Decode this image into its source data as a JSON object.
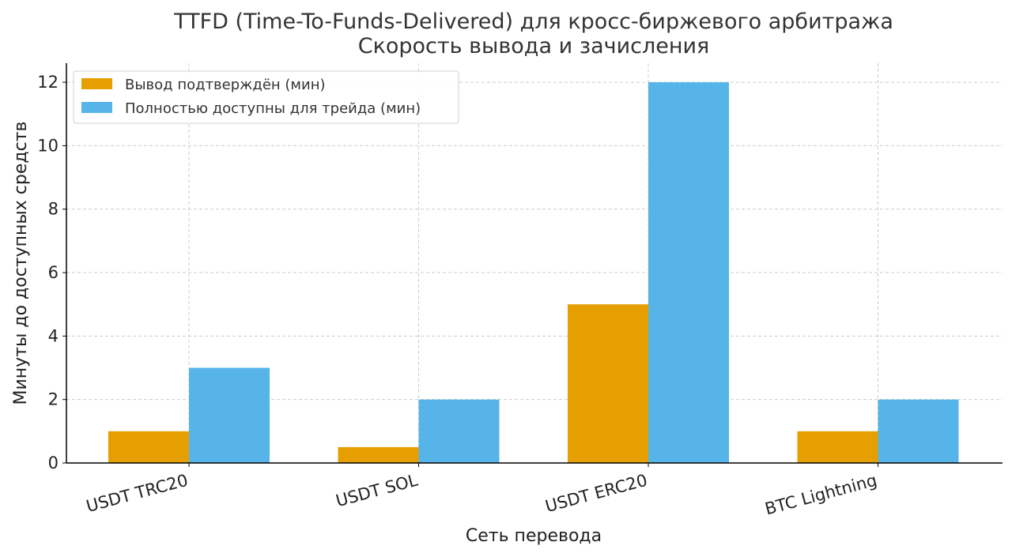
{
  "chart_data": {
    "type": "bar",
    "title": "TTFD (Time-To-Funds-Delivered) для кросс-биржевого арбитража",
    "subtitle": "Скорость вывода и зачисления",
    "xlabel": "Сеть перевода",
    "ylabel": "Минуты до доступных средств",
    "categories": [
      "USDT TRC20",
      "USDT SOL",
      "USDT ERC20",
      "BTC Lightning"
    ],
    "series": [
      {
        "name": "Вывод подтверждён (мин)",
        "color": "#E69F00",
        "values": [
          1,
          0.5,
          5,
          1
        ]
      },
      {
        "name": "Полностью доступны для трейда (мин)",
        "color": "#56B4E9",
        "values": [
          3,
          2,
          12,
          2
        ]
      }
    ],
    "ylim": [
      0,
      12.6
    ],
    "yticks": [
      0,
      2,
      4,
      6,
      8,
      10,
      12
    ],
    "grid": true,
    "legend_position": "top-left"
  }
}
